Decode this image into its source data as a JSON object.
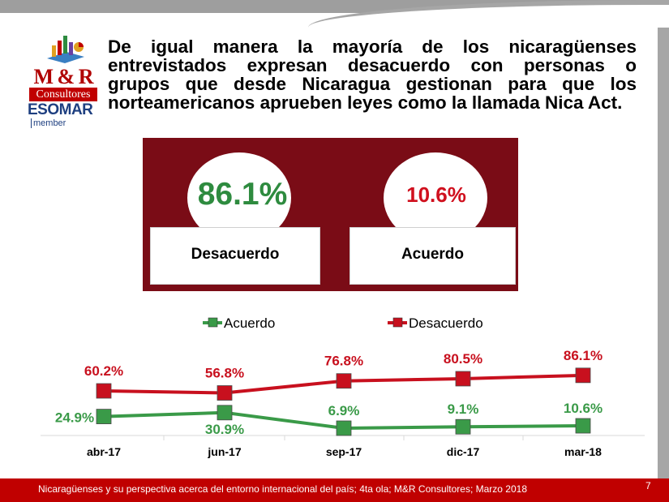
{
  "headline": {
    "lines": [
      "De igual manera la mayoría de los nicaragüenses",
      "entrevistados expresan desacuerdo con personas o",
      "grupos que desde Nicaragua gestionan para que los"
    ],
    "last_line": "norteamericanos aprueben leyes como la llamada Nica Act."
  },
  "logo": {
    "brand": "M & R",
    "subtitle": "Consultores",
    "org": "ESOMAR",
    "member": "member"
  },
  "summary": {
    "disagree": {
      "value": "86.1%",
      "label": "Desacuerdo"
    },
    "agree": {
      "value": "10.6%",
      "label": "Acuerdo"
    }
  },
  "colors": {
    "maroon": "#7a0c16",
    "green": "#2e8b3f",
    "red": "#c00000",
    "series_red": "#d0101e"
  },
  "chart_data": {
    "type": "line",
    "title": "",
    "xlabel": "",
    "ylabel": "",
    "categories": [
      "abr-17",
      "jun-17",
      "sep-17",
      "dic-17",
      "mar-18"
    ],
    "series": [
      {
        "name": "Acuerdo",
        "values": [
          24.9,
          30.9,
          6.9,
          9.1,
          10.6
        ],
        "labels": [
          "24.9%",
          "30.9%",
          "6.9%",
          "9.1%",
          "10.6%"
        ],
        "color": "#3a9a48"
      },
      {
        "name": "Desacuerdo",
        "values": [
          60.2,
          56.8,
          76.8,
          80.5,
          86.1
        ],
        "labels": [
          "60.2%",
          "56.8%",
          "76.8%",
          "80.5%",
          "86.1%"
        ],
        "color": "#c8101e"
      }
    ],
    "legend_position": "top",
    "grid": false
  },
  "footer": {
    "source": "Nicaragüenses y su perspectiva acerca del entorno internacional del país; 4ta ola; M&R Consultores; Marzo 2018",
    "page": "7"
  }
}
